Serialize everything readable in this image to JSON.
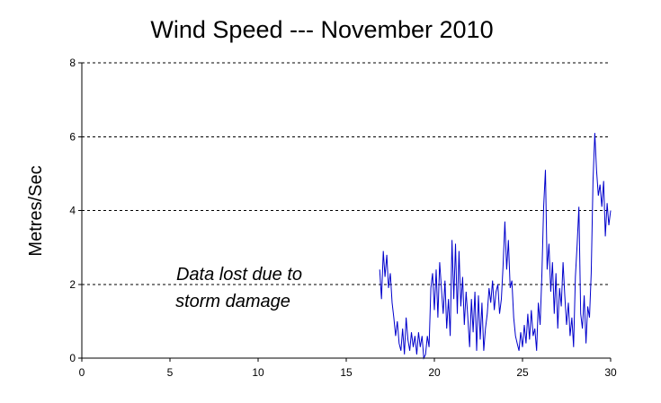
{
  "chart_data": {
    "type": "line",
    "title": "Wind Speed --- November 2010",
    "ylabel": "Metres/Sec",
    "xlabel": "",
    "xlim": [
      0,
      30
    ],
    "ylim": [
      0,
      8
    ],
    "x_ticks": [
      0,
      5,
      10,
      15,
      20,
      25,
      30
    ],
    "y_ticks": [
      0,
      2,
      4,
      6,
      8
    ],
    "grid": "horizontal dashed",
    "annotation": [
      "Data lost due to",
      "storm damage"
    ],
    "series": [
      {
        "color": "#0000cc",
        "x": [
          16.9,
          17.0,
          17.1,
          17.2,
          17.3,
          17.4,
          17.5,
          17.6,
          17.7,
          17.8,
          17.9,
          18.0,
          18.1,
          18.2,
          18.3,
          18.4,
          18.5,
          18.6,
          18.7,
          18.8,
          18.9,
          19.0,
          19.1,
          19.2,
          19.3,
          19.4,
          19.5,
          19.6,
          19.7,
          19.8,
          19.9,
          20.0,
          20.1,
          20.2,
          20.3,
          20.4,
          20.5,
          20.6,
          20.7,
          20.8,
          20.9,
          21.0,
          21.1,
          21.2,
          21.3,
          21.4,
          21.5,
          21.6,
          21.7,
          21.8,
          21.9,
          22.0,
          22.1,
          22.2,
          22.3,
          22.4,
          22.5,
          22.6,
          22.7,
          22.8,
          22.9,
          23.0,
          23.1,
          23.2,
          23.3,
          23.4,
          23.5,
          23.6,
          23.7,
          23.8,
          23.9,
          24.0,
          24.1,
          24.2,
          24.3,
          24.4,
          24.5,
          24.6,
          24.7,
          24.8,
          24.9,
          25.0,
          25.1,
          25.2,
          25.3,
          25.4,
          25.5,
          25.6,
          25.7,
          25.8,
          25.9,
          26.0,
          26.1,
          26.2,
          26.3,
          26.4,
          26.5,
          26.6,
          26.7,
          26.8,
          26.9,
          27.0,
          27.1,
          27.2,
          27.3,
          27.4,
          27.5,
          27.6,
          27.7,
          27.8,
          27.9,
          28.0,
          28.1,
          28.2,
          28.3,
          28.4,
          28.5,
          28.6,
          28.7,
          28.8,
          28.9,
          29.0,
          29.1,
          29.2,
          29.3,
          29.4,
          29.5,
          29.6,
          29.7,
          29.8,
          29.9,
          30.0
        ],
        "values": [
          2.4,
          1.6,
          2.9,
          2.2,
          2.8,
          1.9,
          2.3,
          1.5,
          1.1,
          0.6,
          1.0,
          0.4,
          0.2,
          0.8,
          0.1,
          1.1,
          0.5,
          0.2,
          0.7,
          0.3,
          0.6,
          0.1,
          0.7,
          0.3,
          0.6,
          0.0,
          0.1,
          0.6,
          0.3,
          1.9,
          2.3,
          1.3,
          2.4,
          1.1,
          2.6,
          1.9,
          1.2,
          2.1,
          0.8,
          1.6,
          0.6,
          3.2,
          1.6,
          3.1,
          1.2,
          2.9,
          1.4,
          2.2,
          0.9,
          1.8,
          1.1,
          0.3,
          1.6,
          0.7,
          1.8,
          0.2,
          1.7,
          0.5,
          1.5,
          0.2,
          0.8,
          1.2,
          1.9,
          1.5,
          2.1,
          1.3,
          1.8,
          2.0,
          1.2,
          1.6,
          2.5,
          3.7,
          2.4,
          3.2,
          1.9,
          2.1,
          1.1,
          0.6,
          0.4,
          0.2,
          0.7,
          0.3,
          0.9,
          0.4,
          1.2,
          0.5,
          1.3,
          0.6,
          0.8,
          0.2,
          1.5,
          0.9,
          2.3,
          4.1,
          5.1,
          2.4,
          3.1,
          1.8,
          2.6,
          1.2,
          2.3,
          0.8,
          1.9,
          1.4,
          2.6,
          1.7,
          0.9,
          1.5,
          0.6,
          1.1,
          0.3,
          2.2,
          3.1,
          4.1,
          1.2,
          0.8,
          1.7,
          0.4,
          1.4,
          1.1,
          2.3,
          4.8,
          6.1,
          5.1,
          4.4,
          4.7,
          4.1,
          4.8,
          3.3,
          4.2,
          3.6,
          4.0
        ]
      }
    ]
  }
}
